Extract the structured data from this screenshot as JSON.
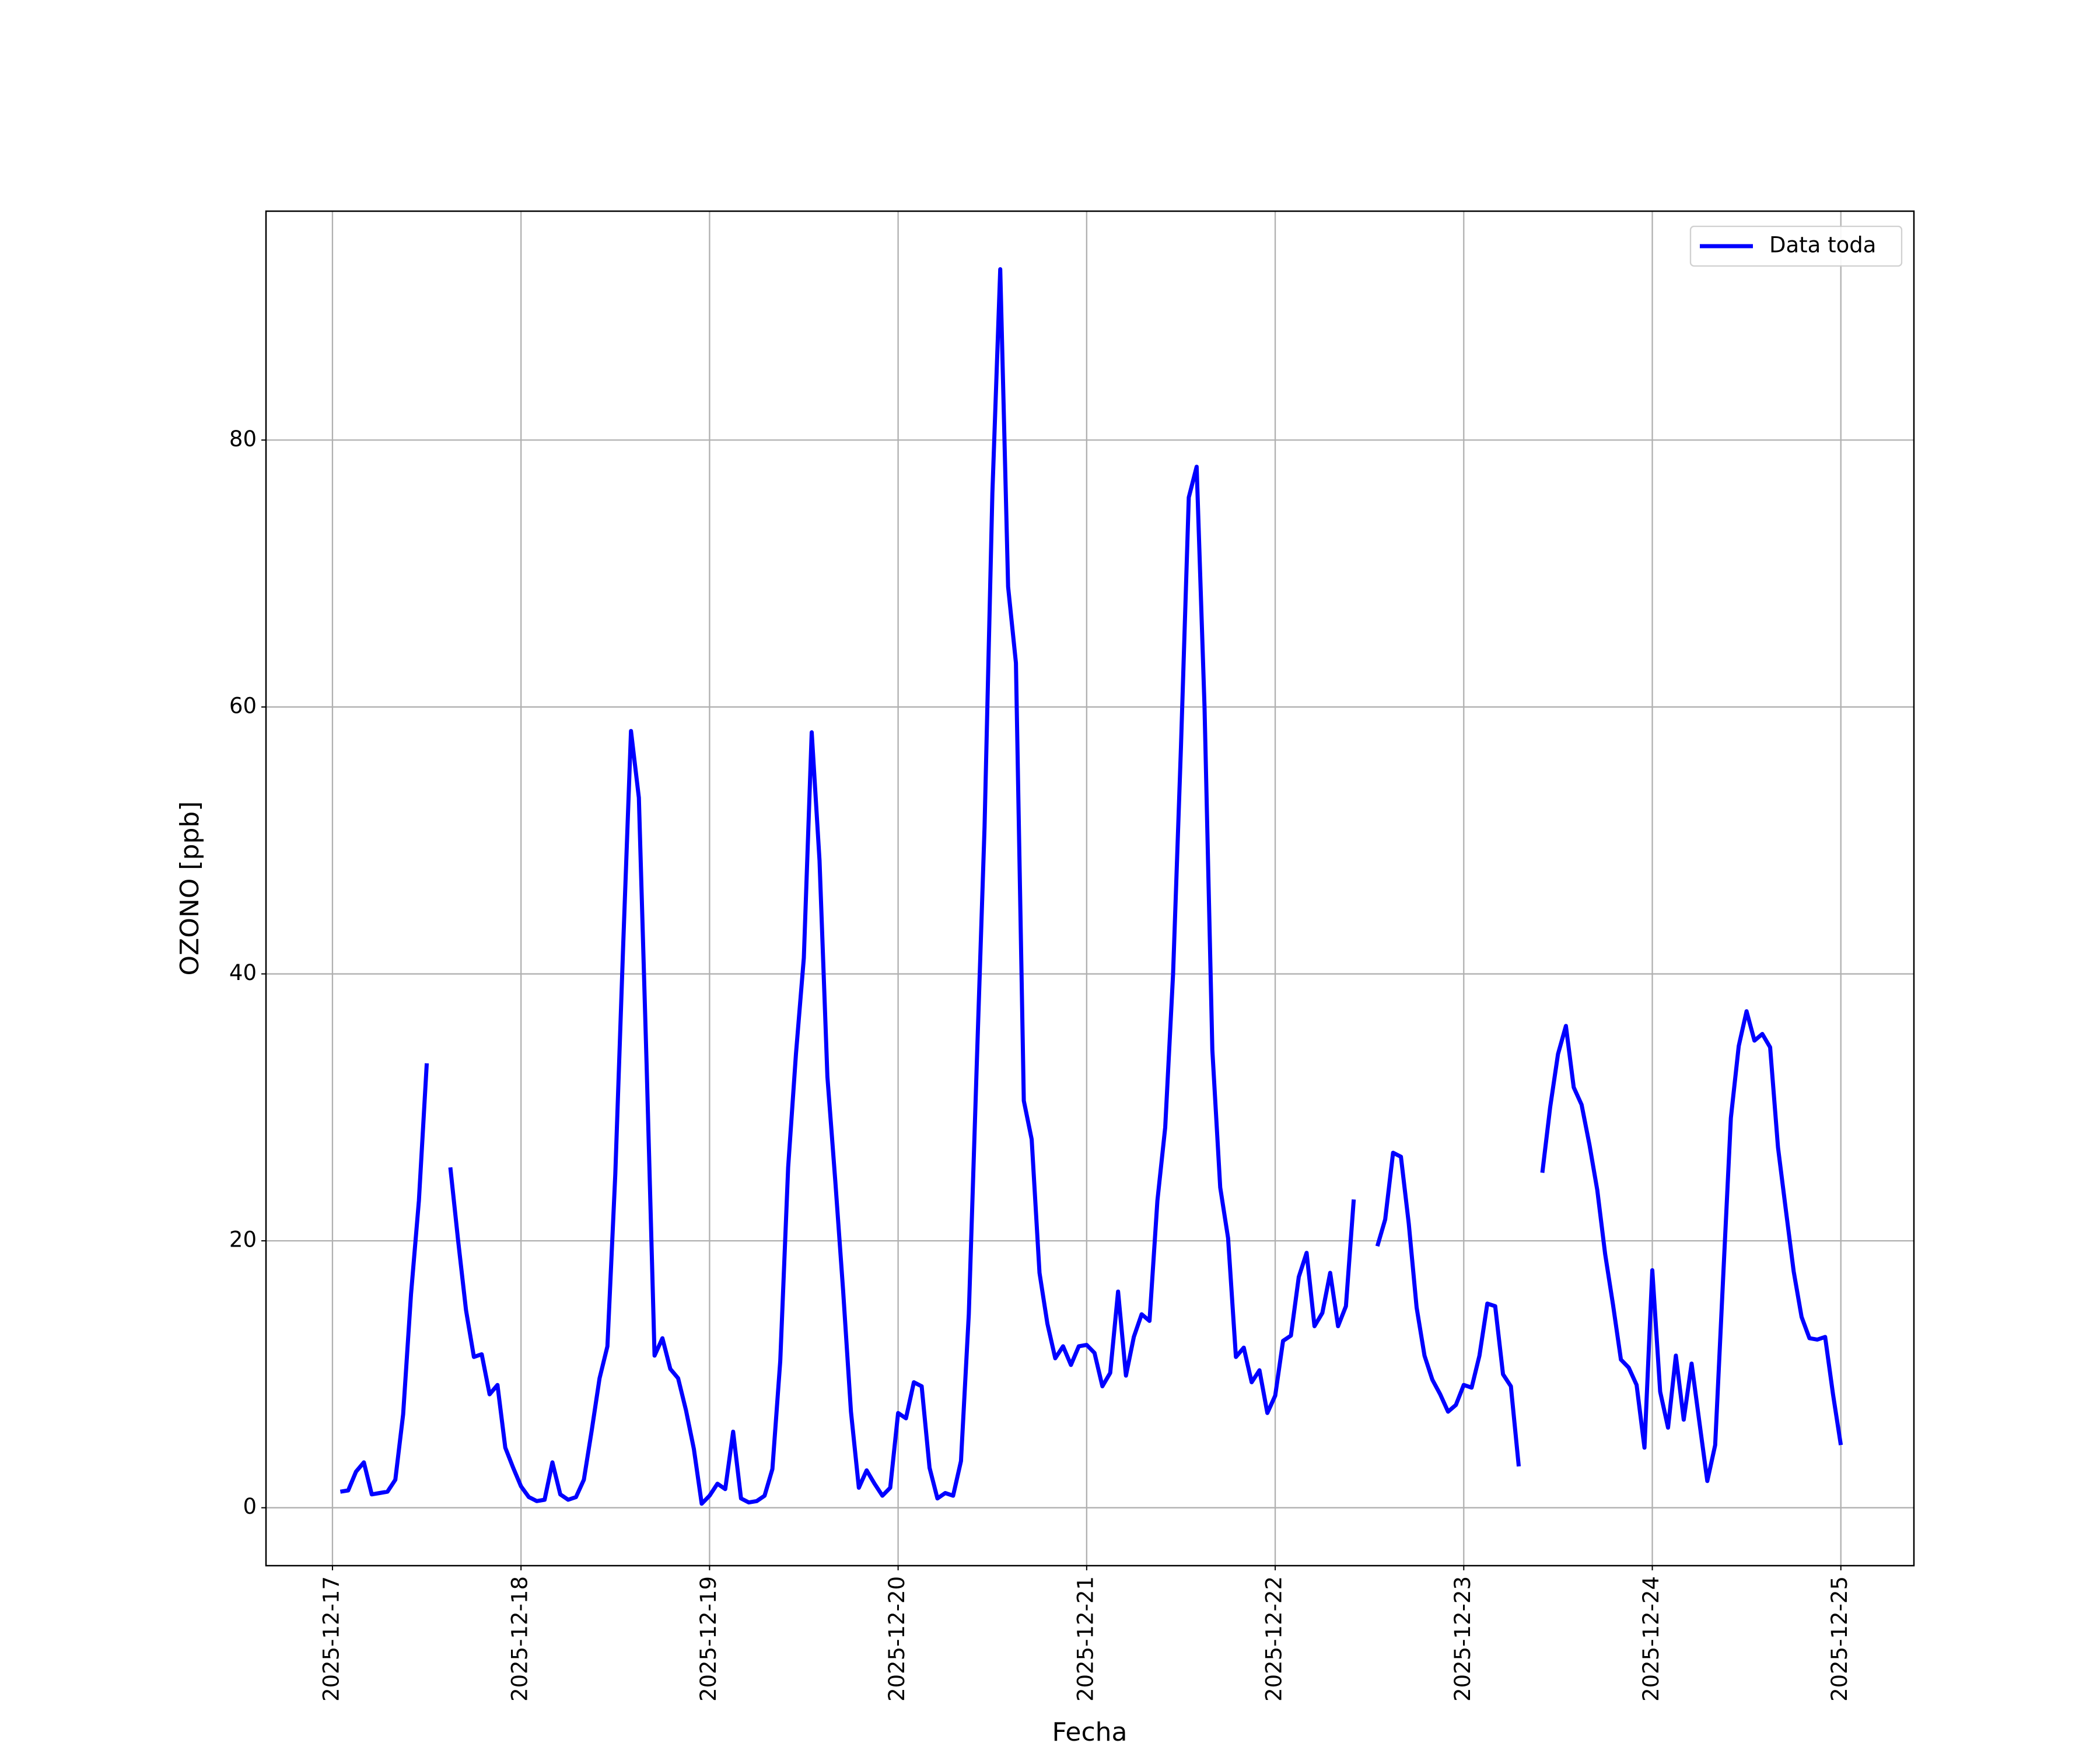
{
  "chart_data": {
    "type": "line",
    "xlabel": "Fecha",
    "ylabel": "OZONO [ppb]",
    "x": [
      1,
      2,
      3,
      4,
      5,
      6,
      7,
      8,
      9,
      10,
      11,
      12,
      13,
      14,
      15,
      16,
      17,
      18,
      19,
      20,
      21,
      22,
      23,
      24,
      25,
      26,
      27,
      28,
      29,
      30,
      31,
      32,
      33,
      34,
      35,
      36,
      37,
      38,
      39,
      40,
      41,
      42,
      43,
      44,
      45,
      46,
      47,
      48,
      49,
      50,
      51,
      52,
      53,
      54,
      55,
      56,
      57,
      58,
      59,
      60,
      61,
      62,
      63,
      64,
      65,
      66,
      67,
      68,
      69,
      70,
      71,
      72,
      73,
      74,
      75,
      76,
      77,
      78,
      79,
      80,
      81,
      82,
      83,
      84,
      85,
      86,
      87,
      88,
      89,
      90,
      91,
      92,
      93,
      94,
      95,
      96,
      97,
      98,
      99,
      100,
      101,
      102,
      103,
      104,
      105,
      106,
      107,
      108,
      109,
      110,
      111,
      112,
      113,
      114,
      115,
      116,
      117,
      118,
      119,
      120,
      121,
      122,
      123,
      124,
      125,
      126,
      127,
      128,
      129,
      130,
      131,
      132,
      133,
      134,
      135,
      136,
      137,
      138,
      139,
      140,
      141,
      142,
      143,
      144,
      145,
      146,
      147,
      148,
      149,
      150,
      151,
      152,
      153,
      154,
      155,
      156,
      157,
      158,
      159,
      160,
      161,
      162,
      163,
      164,
      165,
      166,
      167,
      168,
      169,
      170,
      171,
      172,
      173,
      174,
      175,
      176,
      177,
      178,
      179,
      180,
      181,
      182,
      183,
      184,
      185,
      186,
      187,
      188,
      189,
      190,
      191,
      192
    ],
    "series": [
      {
        "name": "Data toda",
        "color": "#0000ff",
        "values": [
          1.2,
          1.3,
          2.7,
          3.4,
          1.0,
          1.1,
          1.2,
          2.1,
          7,
          16,
          23,
          33.3,
          null,
          null,
          25.5,
          20,
          14.8,
          11.3,
          11.5,
          8.5,
          9.2,
          4.5,
          3.0,
          1.6,
          0.8,
          0.5,
          0.6,
          3.4,
          1.0,
          0.6,
          0.8,
          2.1,
          5.8,
          9.7,
          12.1,
          25,
          42,
          58.2,
          53.2,
          33,
          11.4,
          12.7,
          10.4,
          9.7,
          7.3,
          4.4,
          0.3,
          0.9,
          1.8,
          1.4,
          5.7,
          0.7,
          0.4,
          0.5,
          0.9,
          2.9,
          11,
          25.5,
          34,
          41.2,
          58.1,
          48.5,
          32.3,
          24.5,
          16.3,
          7.2,
          1.5,
          2.8,
          1.8,
          0.9,
          1.5,
          7.1,
          6.7,
          9.4,
          9.1,
          3,
          0.7,
          1.1,
          0.9,
          3.5,
          14.5,
          33,
          51,
          76,
          92.8,
          69,
          63.3,
          30.5,
          27.6,
          17.6,
          13.8,
          11.2,
          12.1,
          10.7,
          12.1,
          12.2,
          11.6,
          9.1,
          10.1,
          16.2,
          9.9,
          12.8,
          14.5,
          14,
          23,
          28.5,
          40,
          57,
          75.7,
          78,
          60,
          34.3,
          24,
          20.2,
          11.3,
          12,
          9.4,
          10.3,
          7.1,
          8.4,
          12.5,
          12.9,
          17.3,
          19.1,
          13.6,
          14.6,
          17.6,
          13.6,
          15.1,
          23.1,
          null,
          null,
          19.6,
          21.6,
          26.6,
          26.3,
          21.3,
          15,
          11.4,
          9.6,
          8.5,
          7.2,
          7.7,
          9.2,
          9.0,
          11.4,
          15.3,
          15.1,
          10,
          9.1,
          3.1,
          null,
          null,
          25.1,
          30,
          34,
          36.1,
          31.5,
          30.2,
          27.2,
          23.8,
          19,
          15.2,
          11.1,
          10.5,
          9.2,
          4.5,
          17.8,
          8.7,
          6,
          11.4,
          6.6,
          10.8,
          6.4,
          2,
          4.7,
          17,
          29.2,
          34.6,
          37.2,
          35,
          35.5,
          34.5,
          27,
          22.3,
          17.7,
          14.3,
          12.7,
          12.6,
          12.8,
          8.5,
          4.7
        ]
      }
    ],
    "xlim": [
      -8.46,
      201.3
    ],
    "xticks": [
      {
        "value": 0,
        "label": "2025-12-17"
      },
      {
        "value": 24,
        "label": "2025-12-18"
      },
      {
        "value": 48,
        "label": "2025-12-19"
      },
      {
        "value": 72,
        "label": "2025-12-20"
      },
      {
        "value": 96,
        "label": "2025-12-21"
      },
      {
        "value": 120,
        "label": "2025-12-22"
      },
      {
        "value": 144,
        "label": "2025-12-23"
      },
      {
        "value": 168,
        "label": "2025-12-24"
      },
      {
        "value": 192,
        "label": "2025-12-25"
      }
    ],
    "ylim": [
      -4.34,
      97.15
    ],
    "yticks": [
      0,
      20,
      40,
      60,
      80
    ],
    "grid": true,
    "legend": "upper right"
  }
}
